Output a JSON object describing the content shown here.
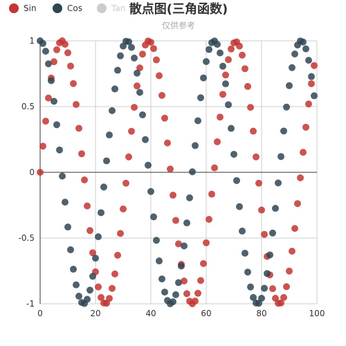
{
  "chart_data": {
    "type": "scatter",
    "title": "散点图(三角函数)",
    "subtitle": "仅供参考",
    "xlim": [
      0,
      100
    ],
    "ylim": [
      -1,
      1
    ],
    "x_ticks": [
      "0",
      "20",
      "40",
      "60",
      "80",
      "100"
    ],
    "y_ticks": [
      "1",
      "0.5",
      "0",
      "-0.5",
      "-1"
    ],
    "grid": true,
    "legend_position": "top-left",
    "series": [
      {
        "name": "Sin",
        "color": "#c23531",
        "active": true,
        "points": [
          [
            0,
            0
          ],
          [
            1,
            0.199
          ],
          [
            2,
            0.389
          ],
          [
            3,
            0.565
          ],
          [
            4,
            0.717
          ],
          [
            5,
            0.841
          ],
          [
            6,
            0.932
          ],
          [
            7,
            0.985
          ],
          [
            8,
            1.0
          ],
          [
            9,
            0.974
          ],
          [
            10,
            0.909
          ],
          [
            11,
            0.808
          ],
          [
            12,
            0.675
          ],
          [
            13,
            0.516
          ],
          [
            14,
            0.335
          ],
          [
            15,
            0.141
          ],
          [
            16,
            -0.058
          ],
          [
            17,
            -0.256
          ],
          [
            18,
            -0.443
          ],
          [
            19,
            -0.612
          ],
          [
            20,
            -0.757
          ],
          [
            21,
            -0.872
          ],
          [
            22,
            -0.952
          ],
          [
            23,
            -0.994
          ],
          [
            24,
            -0.996
          ],
          [
            25,
            -0.959
          ],
          [
            26,
            -0.883
          ],
          [
            27,
            -0.773
          ],
          [
            28,
            -0.631
          ],
          [
            29,
            -0.465
          ],
          [
            30,
            -0.279
          ],
          [
            31,
            -0.083
          ],
          [
            32,
            0.117
          ],
          [
            33,
            0.312
          ],
          [
            34,
            0.494
          ],
          [
            35,
            0.657
          ],
          [
            36,
            0.794
          ],
          [
            37,
            0.899
          ],
          [
            38,
            0.968
          ],
          [
            39,
            0.999
          ],
          [
            40,
            0.989
          ],
          [
            41,
            0.941
          ],
          [
            42,
            0.855
          ],
          [
            43,
            0.735
          ],
          [
            44,
            0.585
          ],
          [
            45,
            0.412
          ],
          [
            46,
            0.223
          ],
          [
            47,
            0.025
          ],
          [
            48,
            -0.174
          ],
          [
            49,
            -0.366
          ],
          [
            50,
            -0.544
          ],
          [
            51,
            -0.7
          ],
          [
            52,
            -0.827
          ],
          [
            53,
            -0.923
          ],
          [
            54,
            -0.98
          ],
          [
            55,
            -1.0
          ],
          [
            56,
            -0.979
          ],
          [
            57,
            -0.92
          ],
          [
            58,
            -0.823
          ],
          [
            59,
            -0.694
          ],
          [
            60,
            -0.536
          ],
          [
            61,
            -0.358
          ],
          [
            62,
            -0.166
          ],
          [
            63,
            0.034
          ],
          [
            64,
            0.232
          ],
          [
            65,
            0.42
          ],
          [
            66,
            0.593
          ],
          [
            67,
            0.74
          ],
          [
            68,
            0.857
          ],
          [
            69,
            0.938
          ],
          [
            70,
            0.985
          ],
          [
            71,
            0.992
          ],
          [
            72,
            0.96
          ],
          [
            73,
            0.891
          ],
          [
            74,
            0.788
          ],
          [
            75,
            0.653
          ],
          [
            76,
            0.494
          ],
          [
            77,
            0.313
          ],
          [
            78,
            0.117
          ],
          [
            79,
            -0.083
          ],
          [
            80,
            -0.287
          ],
          [
            81,
            -0.472
          ],
          [
            82,
            -0.64
          ],
          [
            83,
            -0.78
          ],
          [
            84,
            -0.885
          ],
          [
            85,
            -0.958
          ],
          [
            86,
            -0.996
          ],
          [
            87,
            -0.994
          ],
          [
            88,
            -0.952
          ],
          [
            89,
            -0.87
          ],
          [
            90,
            -0.751
          ],
          [
            91,
            -0.6
          ],
          [
            92,
            -0.427
          ],
          [
            93,
            -0.238
          ],
          [
            94,
            -0.042
          ],
          [
            95,
            0.152
          ],
          [
            96,
            0.343
          ],
          [
            97,
            0.52
          ],
          [
            98,
            0.674
          ],
          [
            99,
            0.812
          ]
        ]
      },
      {
        "name": "Cos",
        "color": "#2f4554",
        "active": true,
        "points": [
          [
            0,
            1.0
          ],
          [
            1,
            0.98
          ],
          [
            2,
            0.921
          ],
          [
            3,
            0.825
          ],
          [
            4,
            0.697
          ],
          [
            5,
            0.54
          ],
          [
            6,
            0.362
          ],
          [
            7,
            0.17
          ],
          [
            8,
            -0.029
          ],
          [
            9,
            -0.227
          ],
          [
            10,
            -0.416
          ],
          [
            11,
            -0.589
          ],
          [
            12,
            -0.737
          ],
          [
            13,
            -0.856
          ],
          [
            14,
            -0.942
          ],
          [
            15,
            -0.99
          ],
          [
            16,
            -0.998
          ],
          [
            17,
            -0.966
          ],
          [
            18,
            -0.896
          ],
          [
            19,
            -0.791
          ],
          [
            20,
            -0.653
          ],
          [
            21,
            -0.49
          ],
          [
            22,
            -0.307
          ],
          [
            23,
            -0.112
          ],
          [
            24,
            0.087
          ],
          [
            25,
            0.284
          ],
          [
            26,
            0.469
          ],
          [
            27,
            0.634
          ],
          [
            28,
            0.776
          ],
          [
            29,
            0.886
          ],
          [
            30,
            0.96
          ],
          [
            31,
            0.997
          ],
          [
            32,
            0.993
          ],
          [
            33,
            0.95
          ],
          [
            34,
            0.869
          ],
          [
            35,
            0.754
          ],
          [
            36,
            0.608
          ],
          [
            37,
            0.437
          ],
          [
            38,
            0.249
          ],
          [
            39,
            0.054
          ],
          [
            40,
            -0.146
          ],
          [
            41,
            -0.339
          ],
          [
            42,
            -0.517
          ],
          [
            43,
            -0.674
          ],
          [
            44,
            -0.811
          ],
          [
            45,
            -0.911
          ],
          [
            46,
            -0.975
          ],
          [
            47,
            -1.0
          ],
          [
            48,
            -0.985
          ],
          [
            49,
            -0.931
          ],
          [
            50,
            -0.839
          ],
          [
            51,
            -0.713
          ],
          [
            52,
            -0.56
          ],
          [
            53,
            -0.385
          ],
          [
            54,
            -0.194
          ],
          [
            55,
            0.004
          ],
          [
            56,
            0.203
          ],
          [
            57,
            0.392
          ],
          [
            58,
            0.567
          ],
          [
            59,
            0.718
          ],
          [
            60,
            0.842
          ],
          [
            61,
            0.934
          ],
          [
            62,
            0.986
          ],
          [
            63,
            0.999
          ],
          [
            64,
            0.973
          ],
          [
            65,
            0.908
          ],
          [
            66,
            0.807
          ],
          [
            67,
            0.673
          ],
          [
            68,
            0.514
          ],
          [
            69,
            0.334
          ],
          [
            70,
            0.137
          ],
          [
            71,
            -0.063
          ],
          [
            72,
            -0.261
          ],
          [
            73,
            -0.447
          ],
          [
            74,
            -0.615
          ],
          [
            75,
            -0.759
          ],
          [
            76,
            -0.872
          ],
          [
            77,
            -0.952
          ],
          [
            78,
            -0.994
          ],
          [
            79,
            -0.996
          ],
          [
            80,
            -0.958
          ],
          [
            81,
            -0.882
          ],
          [
            82,
            -0.77
          ],
          [
            83,
            -0.628
          ],
          [
            84,
            -0.462
          ],
          [
            85,
            -0.274
          ],
          [
            86,
            -0.081
          ],
          [
            87,
            0.12
          ],
          [
            88,
            0.314
          ],
          [
            89,
            0.496
          ],
          [
            90,
            0.659
          ],
          [
            91,
            0.796
          ],
          [
            92,
            0.9
          ],
          [
            93,
            0.968
          ],
          [
            94,
            0.999
          ],
          [
            95,
            0.991
          ],
          [
            96,
            0.939
          ],
          [
            97,
            0.852
          ],
          [
            98,
            0.728
          ],
          [
            99,
            0.582
          ]
        ]
      },
      {
        "name": "Tan",
        "color": "#cccccc",
        "active": false,
        "points": []
      }
    ]
  }
}
